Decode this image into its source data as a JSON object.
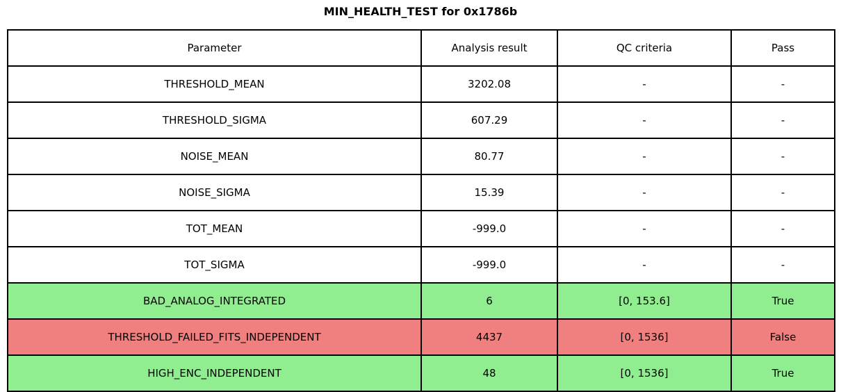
{
  "title": "MIN_HEALTH_TEST for 0x1786b",
  "colors": {
    "pass": "#90EE90",
    "fail": "#F08080",
    "neutral": "#FFFFFF",
    "border": "#000000",
    "text": "#000000",
    "background": "#FFFFFF"
  },
  "chart_data": {
    "type": "table",
    "title": "MIN_HEALTH_TEST for 0x1786b",
    "columns": [
      "Parameter",
      "Analysis result",
      "QC criteria",
      "Pass"
    ],
    "column_keys": [
      "parameter",
      "result",
      "qc",
      "pass"
    ],
    "rows": [
      {
        "parameter": "THRESHOLD_MEAN",
        "result": "3202.08",
        "qc": "-",
        "pass": "-",
        "status": "neutral"
      },
      {
        "parameter": "THRESHOLD_SIGMA",
        "result": "607.29",
        "qc": "-",
        "pass": "-",
        "status": "neutral"
      },
      {
        "parameter": "NOISE_MEAN",
        "result": "80.77",
        "qc": "-",
        "pass": "-",
        "status": "neutral"
      },
      {
        "parameter": "NOISE_SIGMA",
        "result": "15.39",
        "qc": "-",
        "pass": "-",
        "status": "neutral"
      },
      {
        "parameter": "TOT_MEAN",
        "result": "-999.0",
        "qc": "-",
        "pass": "-",
        "status": "neutral"
      },
      {
        "parameter": "TOT_SIGMA",
        "result": "-999.0",
        "qc": "-",
        "pass": "-",
        "status": "neutral"
      },
      {
        "parameter": "BAD_ANALOG_INTEGRATED",
        "result": "6",
        "qc": "[0, 153.6]",
        "pass": "True",
        "status": "pass"
      },
      {
        "parameter": "THRESHOLD_FAILED_FITS_INDEPENDENT",
        "result": "4437",
        "qc": "[0, 1536]",
        "pass": "False",
        "status": "fail"
      },
      {
        "parameter": "HIGH_ENC_INDEPENDENT",
        "result": "48",
        "qc": "[0, 1536]",
        "pass": "True",
        "status": "pass"
      }
    ]
  }
}
